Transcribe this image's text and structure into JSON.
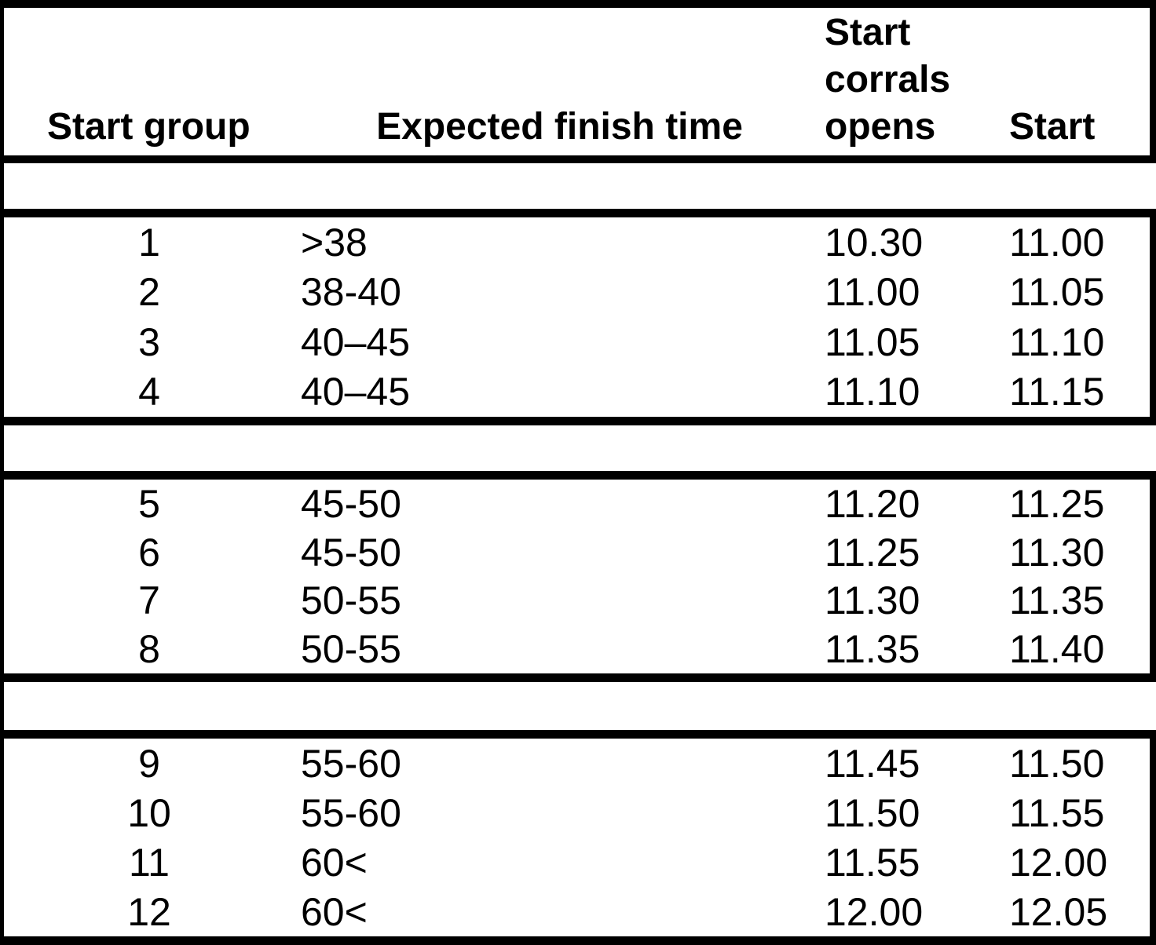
{
  "colors": {
    "background": "#ffffff",
    "border": "#000000",
    "text": "#000000"
  },
  "header": {
    "start_group": "Start group",
    "expected_finish_time": "Expected finish time",
    "start_corrals_opens": "Start corrals opens",
    "start": "Start"
  },
  "blocks": [
    {
      "rows": [
        {
          "group": "1",
          "finish": ">38",
          "corrals_open": "10.30",
          "start": "11.00"
        },
        {
          "group": "2",
          "finish": "38-40",
          "corrals_open": "11.00",
          "start": "11.05"
        },
        {
          "group": "3",
          "finish": "40–45",
          "corrals_open": "11.05",
          "start": "11.10"
        },
        {
          "group": "4",
          "finish": "40–45",
          "corrals_open": "11.10",
          "start": "11.15"
        }
      ]
    },
    {
      "rows": [
        {
          "group": "5",
          "finish": "45-50",
          "corrals_open": "11.20",
          "start": "11.25"
        },
        {
          "group": "6",
          "finish": "45-50",
          "corrals_open": "11.25",
          "start": "11.30"
        },
        {
          "group": "7",
          "finish": "50-55",
          "corrals_open": "11.30",
          "start": "11.35"
        },
        {
          "group": "8",
          "finish": "50-55",
          "corrals_open": "11.35",
          "start": "11.40"
        }
      ]
    },
    {
      "rows": [
        {
          "group": "9",
          "finish": "55-60",
          "corrals_open": "11.45",
          "start": "11.50"
        },
        {
          "group": "10",
          "finish": "55-60",
          "corrals_open": "11.50",
          "start": "11.55"
        },
        {
          "group": "11",
          "finish": "60<",
          "corrals_open": "11.55",
          "start": "12.00"
        },
        {
          "group": "12",
          "finish": "60<",
          "corrals_open": "12.00",
          "start": "12.05"
        }
      ]
    }
  ]
}
